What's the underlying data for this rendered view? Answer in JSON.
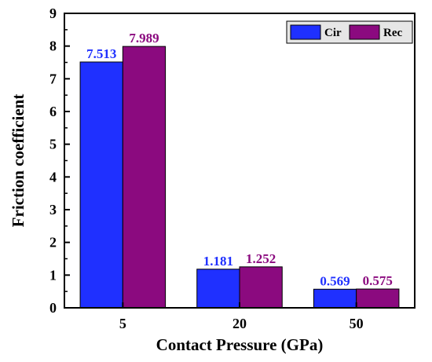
{
  "chart_data": {
    "type": "bar",
    "categories": [
      "5",
      "20",
      "50"
    ],
    "series": [
      {
        "name": "Cir",
        "values": [
          7.513,
          1.181,
          0.569
        ],
        "color": "#1f30ff"
      },
      {
        "name": "Rec",
        "values": [
          7.989,
          1.252,
          0.575
        ],
        "color": "#8b0a7f"
      }
    ],
    "data_labels": [
      [
        "7.513",
        "1.181",
        "0.569"
      ],
      [
        "7.989",
        "1.252",
        "0.575"
      ]
    ],
    "xlabel": "Contact Pressure (GPa)",
    "ylabel": "Friction coefficient",
    "ylim": [
      0,
      9
    ],
    "yticks": [
      "0",
      "1",
      "2",
      "3",
      "4",
      "5",
      "6",
      "7",
      "8",
      "9"
    ],
    "legend_position": "top-right",
    "grid": false
  }
}
